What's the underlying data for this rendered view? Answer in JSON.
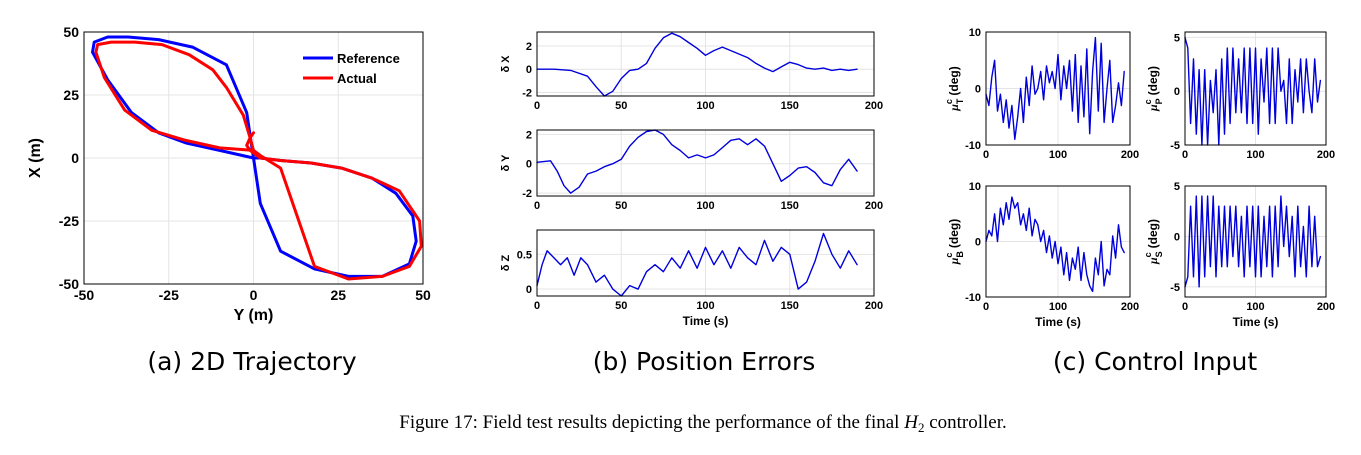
{
  "subfigures": [
    {
      "id": "a",
      "caption": "(a) 2D Trajectory"
    },
    {
      "id": "b",
      "caption": "(b) Position Errors"
    },
    {
      "id": "c",
      "caption": "(c) Control Input"
    }
  ],
  "figure_caption": {
    "prefix": "Figure 17: Field test results depicting the performance of the final ",
    "math": "H",
    "math_sub": "2",
    "suffix": " controller."
  },
  "colors": {
    "reference": "#0000ff",
    "actual": "#ff0000",
    "signal": "#0000dd",
    "grid": "#e4e4e4"
  },
  "chart_data": [
    {
      "id": "traj",
      "type": "line",
      "title": "",
      "xlabel": "Y (m)",
      "ylabel": "X (m)",
      "xlim": [
        -50,
        50
      ],
      "ylim": [
        -50,
        50
      ],
      "xticks": [
        "-50",
        "-25",
        "0",
        "25",
        "50"
      ],
      "yticks": [
        "50",
        "25",
        "0",
        "-25",
        "-50"
      ],
      "legend": {
        "position": "top-right",
        "entries": [
          "Reference",
          "Actual"
        ]
      },
      "grid": true,
      "series": [
        {
          "name": "Reference",
          "color": "#0000ff",
          "x": [
            0,
            -10,
            -20,
            -28,
            -36,
            -43,
            -47.5,
            -47,
            -43,
            -37,
            -28,
            -18,
            -8,
            -2,
            0,
            2,
            8,
            18,
            28,
            38,
            46,
            48,
            47,
            42,
            35,
            26,
            17,
            8,
            2,
            0
          ],
          "y": [
            0,
            3,
            6,
            10,
            18,
            31,
            42,
            46,
            48,
            48,
            47,
            44,
            37,
            18,
            0,
            -18,
            -37,
            -44,
            -47,
            -47,
            -42,
            -33,
            -23,
            -14,
            -8,
            -4,
            -2,
            -1,
            0,
            0
          ]
        },
        {
          "name": "Actual",
          "color": "#ff0000",
          "x": [
            0,
            -10,
            -20,
            -30,
            -38,
            -44,
            -46.5,
            -46,
            -42,
            -35,
            -27,
            -19,
            -12,
            -8,
            -3,
            -1,
            0,
            2,
            8,
            18,
            28,
            38,
            46,
            49.5,
            49,
            43,
            35,
            26,
            17,
            8,
            2,
            -1,
            -2,
            -1,
            0
          ],
          "y": [
            3,
            4,
            7,
            11,
            19,
            32,
            42,
            45,
            46,
            46,
            45,
            41,
            35,
            28,
            17,
            8,
            3,
            1,
            -4,
            -43,
            -48,
            -47,
            -43,
            -35,
            -25,
            -13,
            -8,
            -4,
            -2,
            -1,
            0,
            3,
            5,
            8,
            10
          ]
        }
      ]
    },
    {
      "id": "dX",
      "type": "line",
      "ylabel": "δ X",
      "xlabel": "",
      "xlim": [
        0,
        200
      ],
      "ylim": [
        -2.3,
        3.2
      ],
      "grid": true,
      "xticks": [
        "0",
        "50",
        "100",
        "150",
        "200"
      ],
      "yticks": [
        "2",
        "0",
        "-2"
      ],
      "series": [
        {
          "x": [
            0,
            10,
            20,
            30,
            35,
            40,
            45,
            50,
            55,
            60,
            65,
            70,
            75,
            80,
            85,
            90,
            95,
            100,
            105,
            110,
            115,
            120,
            125,
            130,
            135,
            140,
            145,
            150,
            155,
            160,
            165,
            170,
            175,
            180,
            185,
            190
          ],
          "y": [
            0,
            0,
            -0.1,
            -0.6,
            -1.5,
            -2.3,
            -1.9,
            -0.8,
            -0.1,
            0,
            0.5,
            1.8,
            2.7,
            3.1,
            2.8,
            2.3,
            1.8,
            1.2,
            1.6,
            1.9,
            1.6,
            1.3,
            1.0,
            0.5,
            0.1,
            -0.2,
            0.2,
            0.6,
            0.4,
            0.1,
            0,
            0.1,
            -0.1,
            0,
            -0.1,
            0
          ]
        }
      ]
    },
    {
      "id": "dY",
      "type": "line",
      "ylabel": "δ Y",
      "xlabel": "",
      "xlim": [
        0,
        200
      ],
      "ylim": [
        -2.2,
        2.3
      ],
      "grid": true,
      "xticks": [
        "0",
        "50",
        "100",
        "150",
        "200"
      ],
      "yticks": [
        "2",
        "0",
        "-2"
      ],
      "series": [
        {
          "x": [
            0,
            8,
            12,
            16,
            20,
            25,
            30,
            35,
            40,
            45,
            50,
            55,
            60,
            65,
            70,
            75,
            80,
            85,
            90,
            95,
            100,
            105,
            110,
            115,
            120,
            125,
            130,
            135,
            140,
            145,
            150,
            155,
            160,
            165,
            170,
            175,
            180,
            185,
            190
          ],
          "y": [
            0.1,
            0.2,
            -0.5,
            -1.5,
            -2.0,
            -1.6,
            -0.7,
            -0.5,
            -0.2,
            0.0,
            0.3,
            1.2,
            1.8,
            2.2,
            2.3,
            2.0,
            1.3,
            0.9,
            0.4,
            0.6,
            0.4,
            0.6,
            1.1,
            1.6,
            1.7,
            1.3,
            1.7,
            1.2,
            0.0,
            -1.2,
            -0.8,
            -0.3,
            -0.2,
            -0.6,
            -1.3,
            -1.5,
            -0.4,
            0.3,
            -0.5
          ]
        }
      ]
    },
    {
      "id": "dZ",
      "type": "line",
      "ylabel": "δ Z",
      "xlabel": "Time (s)",
      "xlim": [
        0,
        200
      ],
      "ylim": [
        -0.1,
        0.85
      ],
      "grid": true,
      "xticks": [
        "0",
        "50",
        "100",
        "150",
        "200"
      ],
      "yticks": [
        "0.5",
        "0"
      ],
      "series": [
        {
          "x": [
            0,
            3,
            6,
            10,
            14,
            18,
            22,
            26,
            30,
            35,
            40,
            45,
            50,
            55,
            60,
            65,
            70,
            75,
            80,
            85,
            90,
            95,
            100,
            105,
            110,
            115,
            120,
            125,
            130,
            135,
            140,
            145,
            150,
            155,
            160,
            165,
            170,
            175,
            180,
            185,
            190
          ],
          "y": [
            0.05,
            0.35,
            0.55,
            0.45,
            0.35,
            0.45,
            0.2,
            0.45,
            0.35,
            0.1,
            0.2,
            0.0,
            -0.1,
            0.05,
            0.0,
            0.25,
            0.35,
            0.25,
            0.45,
            0.3,
            0.55,
            0.3,
            0.6,
            0.35,
            0.55,
            0.3,
            0.6,
            0.45,
            0.35,
            0.7,
            0.4,
            0.6,
            0.5,
            0.0,
            0.1,
            0.4,
            0.8,
            0.5,
            0.3,
            0.55,
            0.35
          ]
        }
      ]
    },
    {
      "id": "muT",
      "type": "line",
      "ylabel": "μ",
      "ylabel_sup": "c",
      "ylabel_sub": "T",
      "ylabel_unit": "(deg)",
      "xlabel": "",
      "xlim": [
        0,
        200
      ],
      "ylim": [
        -10,
        10
      ],
      "grid": true,
      "xticks": [
        "0",
        "100",
        "200"
      ],
      "yticks": [
        "10",
        "0",
        "-10"
      ],
      "series": [
        {
          "x": [
            0,
            4,
            8,
            12,
            16,
            20,
            24,
            28,
            32,
            36,
            40,
            44,
            48,
            52,
            56,
            60,
            64,
            68,
            72,
            76,
            80,
            84,
            88,
            92,
            96,
            100,
            104,
            108,
            112,
            116,
            120,
            124,
            128,
            132,
            136,
            140,
            144,
            148,
            152,
            156,
            160,
            164,
            168,
            172,
            176,
            180,
            184,
            188,
            192
          ],
          "y": [
            -1,
            -3,
            2,
            5,
            -4,
            -1,
            -6,
            -2,
            -7,
            -3,
            -9,
            -5,
            0,
            -6,
            2,
            -3,
            4,
            -1,
            0,
            3,
            -2,
            4,
            1,
            3,
            0,
            6,
            -2,
            4,
            0,
            5,
            -4,
            6,
            -6,
            4,
            -5,
            7,
            -8,
            3,
            9,
            -4,
            8,
            -6,
            0,
            5,
            -6,
            -3,
            1,
            -3,
            3
          ]
        }
      ]
    },
    {
      "id": "muP",
      "type": "line",
      "ylabel": "μ",
      "ylabel_sup": "c",
      "ylabel_sub": "P",
      "ylabel_unit": "(deg)",
      "xlabel": "",
      "xlim": [
        0,
        200
      ],
      "ylim": [
        -5,
        5.5
      ],
      "grid": true,
      "xticks": [
        "0",
        "100",
        "200"
      ],
      "yticks": [
        "5",
        "0",
        "-5"
      ],
      "series": [
        {
          "x": [
            0,
            4,
            8,
            12,
            16,
            20,
            24,
            28,
            32,
            36,
            40,
            44,
            48,
            52,
            56,
            60,
            64,
            68,
            72,
            76,
            80,
            84,
            88,
            92,
            96,
            100,
            104,
            108,
            112,
            116,
            120,
            124,
            128,
            132,
            136,
            140,
            144,
            148,
            152,
            156,
            160,
            164,
            168,
            172,
            176,
            180,
            184,
            188,
            192
          ],
          "y": [
            5,
            4,
            -3,
            3,
            -4,
            2,
            -5,
            2,
            -5,
            1,
            -2,
            2,
            -5,
            3,
            -4,
            4,
            -3,
            4,
            -2,
            3,
            -2,
            4,
            -3,
            4,
            -3,
            4,
            -4,
            3,
            -1,
            4,
            -3,
            4,
            -3,
            4,
            0,
            1,
            -3,
            3,
            -3,
            2,
            -1,
            3,
            -2,
            3,
            0,
            -2,
            3,
            -1,
            1
          ]
        }
      ]
    },
    {
      "id": "muB",
      "type": "line",
      "ylabel": "μ",
      "ylabel_sup": "c",
      "ylabel_sub": "B",
      "ylabel_unit": "(deg)",
      "xlabel": "Time (s)",
      "xlim": [
        0,
        200
      ],
      "ylim": [
        -10,
        10
      ],
      "grid": true,
      "xticks": [
        "0",
        "100",
        "200"
      ],
      "yticks": [
        "10",
        "0",
        "-10"
      ],
      "series": [
        {
          "x": [
            0,
            4,
            8,
            12,
            16,
            20,
            24,
            28,
            32,
            36,
            40,
            44,
            48,
            52,
            56,
            60,
            64,
            68,
            72,
            76,
            80,
            84,
            88,
            92,
            96,
            100,
            104,
            108,
            112,
            116,
            120,
            124,
            128,
            132,
            136,
            140,
            144,
            148,
            152,
            156,
            160,
            164,
            168,
            172,
            176,
            180,
            184,
            188,
            192
          ],
          "y": [
            0,
            2,
            1,
            5,
            0,
            6,
            3,
            7,
            4,
            8,
            6,
            7,
            3,
            5,
            2,
            6,
            1,
            4,
            3,
            0,
            2,
            -2,
            1,
            -3,
            0,
            -4,
            -1,
            -6,
            -2,
            -7,
            -3,
            -5,
            -1,
            -7,
            -2,
            -6,
            -8,
            -9,
            -3,
            -6,
            0,
            -8,
            -5,
            -6,
            1,
            -3,
            3,
            -1,
            -2
          ]
        }
      ]
    },
    {
      "id": "muS",
      "type": "line",
      "ylabel": "μ",
      "ylabel_sup": "c",
      "ylabel_sub": "S",
      "ylabel_unit": "(deg)",
      "xlabel": "Time (s)",
      "xlim": [
        0,
        200
      ],
      "ylim": [
        -6,
        5
      ],
      "grid": true,
      "xticks": [
        "0",
        "100",
        "200"
      ],
      "yticks": [
        "5",
        "0",
        "-5"
      ],
      "series": [
        {
          "x": [
            0,
            4,
            8,
            12,
            16,
            20,
            24,
            28,
            32,
            36,
            40,
            44,
            48,
            52,
            56,
            60,
            64,
            68,
            72,
            76,
            80,
            84,
            88,
            92,
            96,
            100,
            104,
            108,
            112,
            116,
            120,
            124,
            128,
            132,
            136,
            140,
            144,
            148,
            152,
            156,
            160,
            164,
            168,
            172,
            176,
            180,
            184,
            188,
            192
          ],
          "y": [
            -5,
            -4,
            3,
            -4,
            4,
            -5,
            4,
            -4,
            4,
            -3,
            4,
            -4,
            3,
            -3,
            3,
            -3,
            3,
            -2,
            3,
            -3,
            2,
            -4,
            3,
            -3,
            3,
            -4,
            3,
            -4,
            2,
            -3,
            3,
            -4,
            3,
            -3,
            4,
            -1,
            3,
            -2,
            2,
            -4,
            3,
            -3,
            1,
            -4,
            3,
            -3,
            2,
            -3,
            -2
          ]
        }
      ]
    }
  ]
}
